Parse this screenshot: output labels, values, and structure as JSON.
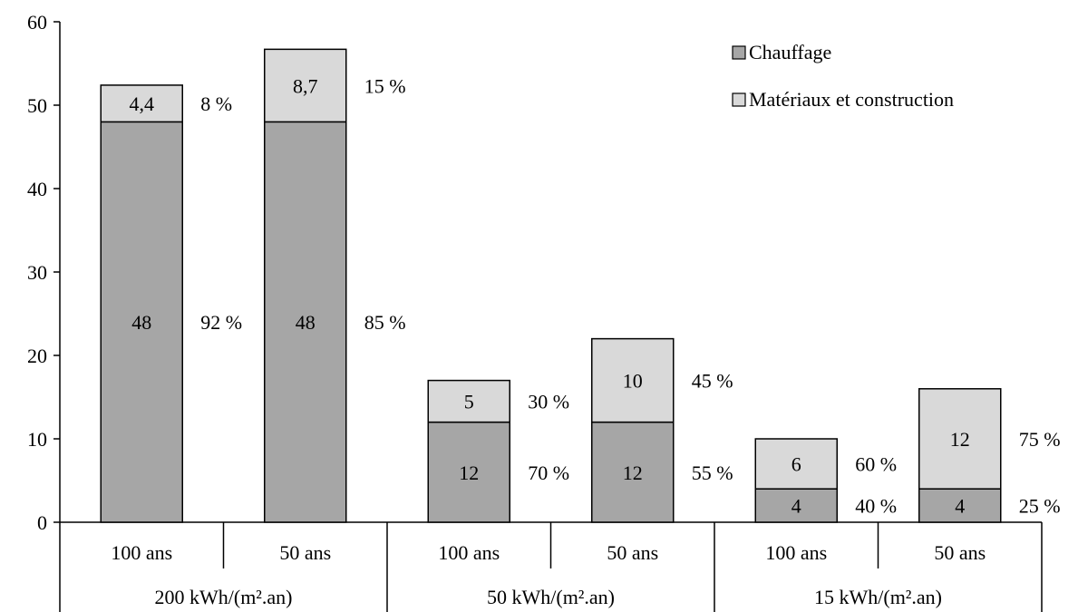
{
  "chart_data": {
    "type": "bar",
    "stacked": true,
    "title": "",
    "xlabel": "",
    "ylabel": "",
    "ylim": [
      0,
      60
    ],
    "yticks": [
      0,
      10,
      20,
      30,
      40,
      50,
      60
    ],
    "grid": false,
    "legend_position": "top-right",
    "categories": [
      "100 ans",
      "50 ans",
      "100 ans",
      "50 ans",
      "100 ans",
      "50 ans"
    ],
    "groups": [
      {
        "label": "200 kWh/(m².an)",
        "span": [
          0,
          1
        ]
      },
      {
        "label": "50 kWh/(m².an)",
        "span": [
          2,
          3
        ]
      },
      {
        "label": "15 kWh/(m².an)",
        "span": [
          4,
          5
        ]
      }
    ],
    "series": [
      {
        "name": "Chauffage",
        "color": "#a6a6a6",
        "values": [
          48,
          48,
          12,
          12,
          4,
          4
        ],
        "value_labels": [
          "48",
          "48",
          "12",
          "12",
          "4",
          "4"
        ],
        "percent_labels": [
          "92 %",
          "85 %",
          "70 %",
          "55 %",
          "40 %",
          "25 %"
        ]
      },
      {
        "name": "Matériaux et construction",
        "color": "#d9d9d9",
        "values": [
          4.4,
          8.7,
          5,
          10,
          6,
          12
        ],
        "value_labels": [
          "4,4",
          "8,7",
          "5",
          "10",
          "6",
          "12"
        ],
        "percent_labels": [
          "8 %",
          "15 %",
          "30 %",
          "45 %",
          "60 %",
          "75 %"
        ]
      }
    ]
  }
}
